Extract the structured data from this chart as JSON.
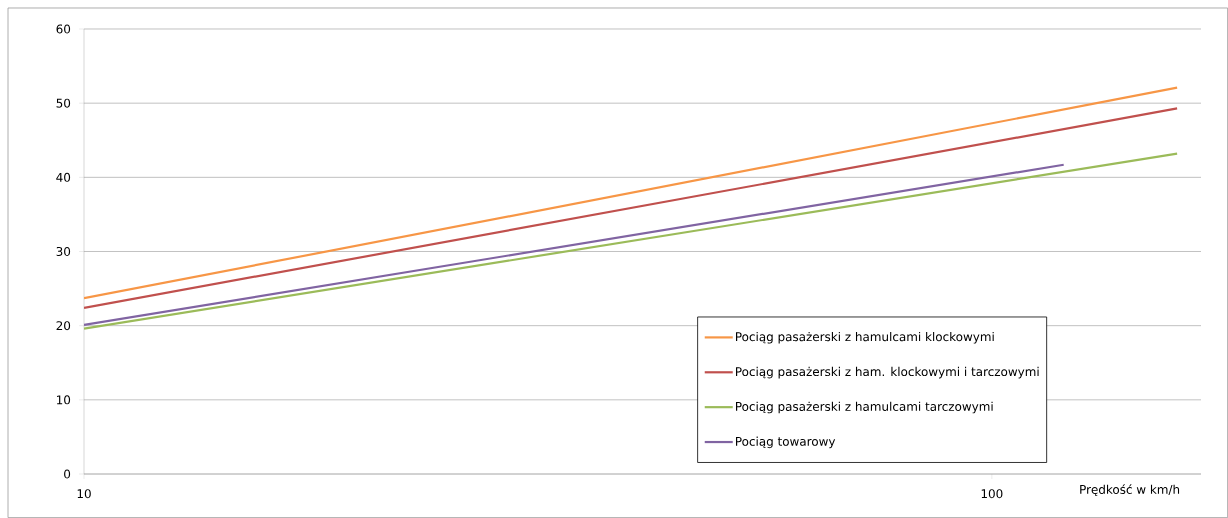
{
  "chart_data": {
    "type": "line",
    "xlabel": "Prędkość w km/h",
    "log": "x",
    "grid": "y",
    "legend": "bottom right",
    "xlim": [
      10,
      170
    ],
    "xticks": [
      10,
      100
    ],
    "ylim": [
      0,
      60
    ],
    "yticks": [
      0,
      10,
      20,
      30,
      40,
      50,
      60
    ],
    "series": [
      {
        "name": "Pociąg pasażerski z hamulcami klockowymi",
        "color": "#f79646",
        "x": [
          10,
          160
        ],
        "values": [
          23.7,
          52.1
        ]
      },
      {
        "name": "Pociąg pasażerski z ham. klockowymi i tarczowymi",
        "color": "#c0504d",
        "x": [
          10,
          160
        ],
        "values": [
          22.4,
          49.3
        ]
      },
      {
        "name": "Pociąg pasażerski z hamulcami tarczowymi",
        "color": "#9bbb59",
        "x": [
          10,
          160
        ],
        "values": [
          19.6,
          43.2
        ]
      },
      {
        "name": "Pociąg towarowy",
        "color": "#8064a2",
        "x": [
          10,
          120
        ],
        "values": [
          20.1,
          41.7
        ]
      }
    ]
  }
}
